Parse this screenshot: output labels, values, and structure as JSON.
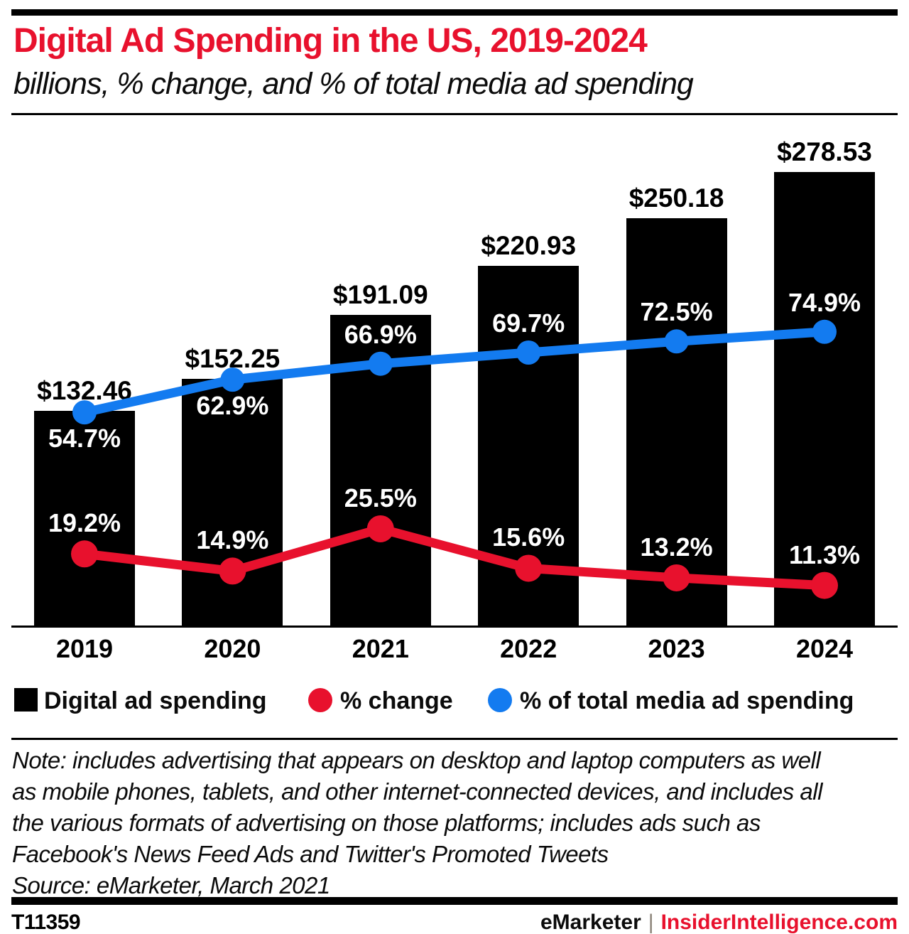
{
  "header": {
    "title": "Digital Ad Spending in the US, 2019-2024",
    "subtitle": "billions, % change, and % of total media ad spending"
  },
  "chart_data": {
    "type": "bar",
    "title": "Digital Ad Spending in the US, 2019-2024",
    "subtitle": "billions, % change, and % of total media ad spending",
    "categories": [
      "2019",
      "2020",
      "2021",
      "2022",
      "2023",
      "2024"
    ],
    "bar_series": {
      "name": "Digital ad spending",
      "unit": "billions of US dollars",
      "color": "#000000",
      "values": [
        132.46,
        152.25,
        191.09,
        220.93,
        250.18,
        278.53
      ],
      "labels": [
        "$132.46",
        "$152.25",
        "$191.09",
        "$220.93",
        "$250.18",
        "$278.53"
      ]
    },
    "line_series": [
      {
        "name": "% of total media ad spending",
        "color": "#137bf0",
        "values": [
          54.7,
          62.9,
          66.9,
          69.7,
          72.5,
          74.9
        ],
        "labels": [
          "54.7%",
          "62.9%",
          "66.9%",
          "69.7%",
          "72.5%",
          "74.9%"
        ]
      },
      {
        "name": "% change",
        "color": "#e8112d",
        "values": [
          19.2,
          14.9,
          25.5,
          15.6,
          13.2,
          11.3
        ],
        "labels": [
          "19.2%",
          "14.9%",
          "25.5%",
          "15.6%",
          "13.2%",
          "11.3%"
        ]
      }
    ],
    "axes": {
      "x_ticks": [
        "2019",
        "2020",
        "2021",
        "2022",
        "2023",
        "2024"
      ],
      "y_axis_shown": false,
      "gridlines": false
    },
    "legend_position": "bottom"
  },
  "legend": {
    "items": [
      {
        "label": "Digital ad spending",
        "color": "#000000",
        "shape": "square"
      },
      {
        "label": "% change",
        "color": "#e8112d",
        "shape": "circle"
      },
      {
        "label": "% of total media ad spending",
        "color": "#137bf0",
        "shape": "circle"
      }
    ]
  },
  "note": {
    "lines": [
      "Note: includes advertising that appears on desktop and laptop computers as well",
      "as mobile phones, tablets, and other internet-connected devices, and includes all",
      "the various formats of advertising on those platforms; includes ads such as",
      "Facebook's News Feed Ads and Twitter's Promoted Tweets"
    ],
    "source": "Source: eMarketer, March 2021"
  },
  "footer": {
    "chart_id": "T11359",
    "brand": "eMarketer",
    "divider": "|",
    "site": "InsiderIntelligence.com"
  }
}
